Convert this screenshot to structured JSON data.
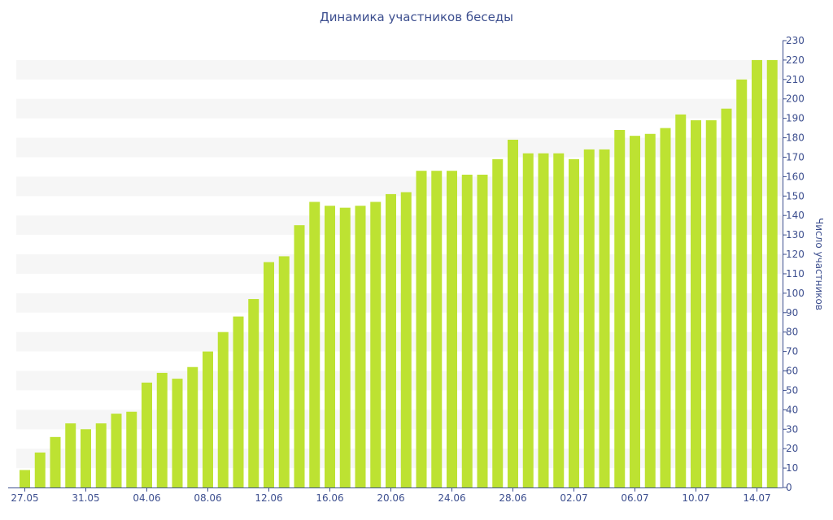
{
  "chart_data": {
    "type": "bar",
    "title": "Динамика участников беседы",
    "xlabel": "",
    "ylabel": "Число участников",
    "ylim": [
      0,
      230
    ],
    "yticks": [
      0,
      10,
      20,
      30,
      40,
      50,
      60,
      70,
      80,
      90,
      100,
      110,
      120,
      130,
      140,
      150,
      160,
      170,
      180,
      190,
      200,
      210,
      220,
      230
    ],
    "x_tick_labels": [
      {
        "label": "27.05",
        "index": 0
      },
      {
        "label": "31.05",
        "index": 4
      },
      {
        "label": "04.06",
        "index": 8
      },
      {
        "label": "08.06",
        "index": 12
      },
      {
        "label": "12.06",
        "index": 16
      },
      {
        "label": "16.06",
        "index": 20
      },
      {
        "label": "20.06",
        "index": 24
      },
      {
        "label": "24.06",
        "index": 28
      },
      {
        "label": "28.06",
        "index": 32
      },
      {
        "label": "02.07",
        "index": 36
      },
      {
        "label": "06.07",
        "index": 40
      },
      {
        "label": "10.07",
        "index": 44
      },
      {
        "label": "14.07",
        "index": 48
      }
    ],
    "categories": [
      "27.05",
      "28.05",
      "29.05",
      "30.05",
      "31.05",
      "01.06",
      "02.06",
      "03.06",
      "04.06",
      "05.06",
      "06.06",
      "07.06",
      "08.06",
      "09.06",
      "10.06",
      "11.06",
      "12.06",
      "13.06",
      "14.06",
      "15.06",
      "16.06",
      "17.06",
      "18.06",
      "19.06",
      "20.06",
      "21.06",
      "22.06",
      "23.06",
      "24.06",
      "25.06",
      "26.06",
      "27.06",
      "28.06",
      "29.06",
      "30.06",
      "01.07",
      "02.07",
      "03.07",
      "04.07",
      "05.07",
      "06.07",
      "07.07",
      "08.07",
      "09.07",
      "10.07",
      "11.07",
      "12.07",
      "13.07",
      "14.07",
      "15.07"
    ],
    "values": [
      9,
      18,
      26,
      33,
      30,
      33,
      38,
      39,
      54,
      59,
      56,
      62,
      70,
      80,
      88,
      97,
      116,
      119,
      135,
      147,
      145,
      144,
      145,
      147,
      151,
      152,
      163,
      163,
      163,
      161,
      161,
      169,
      179,
      172,
      172,
      172,
      169,
      174,
      174,
      184,
      181,
      182,
      185,
      192,
      189,
      189,
      195,
      210,
      220,
      220
    ],
    "colors": {
      "bar": "#bde232",
      "axis": "#3d4f8f",
      "band": "#f6f6f6"
    },
    "grid": "alternating horizontal bands",
    "y_axis_side": "right"
  }
}
